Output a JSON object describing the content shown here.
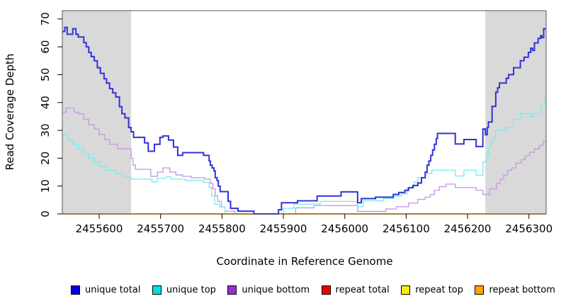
{
  "chart_data": {
    "type": "line",
    "subtype": "step-coverage",
    "title": "",
    "xlabel": "Coordinate in Reference Genome",
    "ylabel": "Read Coverage Depth",
    "xlim": [
      2455540,
      2456328
    ],
    "ylim": [
      0,
      73
    ],
    "x_ticks": [
      2455600,
      2455700,
      2455800,
      2455900,
      2456000,
      2456100,
      2456200,
      2456300
    ],
    "y_ticks": [
      0,
      10,
      20,
      30,
      40,
      50,
      60,
      70
    ],
    "grid": false,
    "legend_position": "bottom",
    "plot_box_color": "#555555",
    "shaded_regions": [
      {
        "x0": 2455540,
        "x1": 2455652,
        "color": "#d9d9d9"
      },
      {
        "x0": 2456229,
        "x1": 2456328,
        "color": "#d9d9d9"
      }
    ],
    "draw_order": [
      2,
      1,
      3,
      4,
      5,
      0
    ],
    "series": [
      {
        "name": "unique total",
        "color": "#3232d8",
        "legend_color": "#0000e0",
        "width": 2,
        "steps": [
          [
            2455540,
            65.5
          ],
          [
            2455544,
            67
          ],
          [
            2455548,
            64.5
          ],
          [
            2455557,
            66.5
          ],
          [
            2455562,
            64.5
          ],
          [
            2455566,
            63.5
          ],
          [
            2455575,
            61.5
          ],
          [
            2455579,
            60
          ],
          [
            2455583,
            58
          ],
          [
            2455587,
            56.5
          ],
          [
            2455592,
            55
          ],
          [
            2455597,
            52.5
          ],
          [
            2455602,
            50.5
          ],
          [
            2455608,
            48.5
          ],
          [
            2455612,
            47
          ],
          [
            2455617,
            45
          ],
          [
            2455622,
            43.5
          ],
          [
            2455627,
            42
          ],
          [
            2455633,
            38.5
          ],
          [
            2455637,
            36
          ],
          [
            2455642,
            34.5
          ],
          [
            2455648,
            31
          ],
          [
            2455652,
            29.5
          ],
          [
            2455656,
            27.5
          ],
          [
            2455674,
            25.5
          ],
          [
            2455680,
            22.5
          ],
          [
            2455690,
            25
          ],
          [
            2455699,
            27.5
          ],
          [
            2455704,
            28
          ],
          [
            2455713,
            26.5
          ],
          [
            2455721,
            24
          ],
          [
            2455728,
            21
          ],
          [
            2455736,
            22
          ],
          [
            2455770,
            21
          ],
          [
            2455779,
            19
          ],
          [
            2455781,
            17.5
          ],
          [
            2455784,
            16.5
          ],
          [
            2455787,
            15.5
          ],
          [
            2455789,
            13
          ],
          [
            2455792,
            12
          ],
          [
            2455794,
            10
          ],
          [
            2455797,
            8
          ],
          [
            2455810,
            4.5
          ],
          [
            2455814,
            2
          ],
          [
            2455826,
            1
          ],
          [
            2455852,
            0
          ],
          [
            2455892,
            1.5
          ],
          [
            2455897,
            4
          ],
          [
            2455923,
            4.7
          ],
          [
            2455955,
            6.4
          ],
          [
            2455994,
            7.9
          ],
          [
            2456021,
            4
          ],
          [
            2456027,
            5.5
          ],
          [
            2456050,
            6
          ],
          [
            2456079,
            7
          ],
          [
            2456088,
            7.7
          ],
          [
            2456098,
            8.5
          ],
          [
            2456104,
            9.4
          ],
          [
            2456111,
            10.2
          ],
          [
            2456119,
            11.1
          ],
          [
            2456125,
            13
          ],
          [
            2456131,
            15
          ],
          [
            2456134,
            17.5
          ],
          [
            2456137,
            19
          ],
          [
            2456140,
            21
          ],
          [
            2456143,
            23
          ],
          [
            2456146,
            25
          ],
          [
            2456149,
            27
          ],
          [
            2456151,
            28.9
          ],
          [
            2456180,
            25.1
          ],
          [
            2456194,
            26.7
          ],
          [
            2456214,
            24.2
          ],
          [
            2456225,
            30.5
          ],
          [
            2456229,
            28.4
          ],
          [
            2456232,
            31
          ],
          [
            2456234,
            33
          ],
          [
            2456240,
            38.6
          ],
          [
            2456246,
            43.7
          ],
          [
            2456249,
            45.3
          ],
          [
            2456252,
            47
          ],
          [
            2456263,
            48.7
          ],
          [
            2456267,
            50
          ],
          [
            2456275,
            52.5
          ],
          [
            2456286,
            55
          ],
          [
            2456292,
            56.3
          ],
          [
            2456299,
            58
          ],
          [
            2456303,
            59.5
          ],
          [
            2456306,
            58.7
          ],
          [
            2456309,
            61.4
          ],
          [
            2456315,
            63
          ],
          [
            2456319,
            64
          ],
          [
            2456321,
            63.3
          ],
          [
            2456324,
            66.5
          ]
        ]
      },
      {
        "name": "unique top",
        "color": "#7ceded",
        "legend_color": "#00e0e0",
        "width": 1.4,
        "steps": [
          [
            2455540,
            28.4
          ],
          [
            2455549,
            26.5
          ],
          [
            2455558,
            25
          ],
          [
            2455566,
            23.4
          ],
          [
            2455575,
            21.6
          ],
          [
            2455583,
            20
          ],
          [
            2455592,
            18.5
          ],
          [
            2455600,
            17
          ],
          [
            2455612,
            15.7
          ],
          [
            2455626,
            14.4
          ],
          [
            2455640,
            13.2
          ],
          [
            2455652,
            12.5
          ],
          [
            2455686,
            11.5
          ],
          [
            2455694,
            12.8
          ],
          [
            2455709,
            13.3
          ],
          [
            2455717,
            12.5
          ],
          [
            2455740,
            12
          ],
          [
            2455770,
            11.3
          ],
          [
            2455779,
            9.5
          ],
          [
            2455783,
            6.5
          ],
          [
            2455788,
            3.5
          ],
          [
            2455796,
            2.5
          ],
          [
            2455805,
            0
          ],
          [
            2455900,
            2
          ],
          [
            2455917,
            3.5
          ],
          [
            2455960,
            4.5
          ],
          [
            2456021,
            2.6
          ],
          [
            2456030,
            4.7
          ],
          [
            2456063,
            5.6
          ],
          [
            2456080,
            6.4
          ],
          [
            2456092,
            7.2
          ],
          [
            2456102,
            9.4
          ],
          [
            2456113,
            11.5
          ],
          [
            2456119,
            13
          ],
          [
            2456131,
            14.5
          ],
          [
            2456142,
            15.7
          ],
          [
            2456180,
            13.6
          ],
          [
            2456194,
            15.7
          ],
          [
            2456214,
            13.9
          ],
          [
            2456225,
            18.7
          ],
          [
            2456230,
            21
          ],
          [
            2456234,
            23.4
          ],
          [
            2456238,
            25.5
          ],
          [
            2456242,
            27.5
          ],
          [
            2456246,
            30
          ],
          [
            2456263,
            31
          ],
          [
            2456275,
            33.9
          ],
          [
            2456286,
            36
          ],
          [
            2456303,
            34.8
          ],
          [
            2456307,
            36
          ],
          [
            2456320,
            39.4
          ],
          [
            2456326,
            41.5
          ]
        ]
      },
      {
        "name": "unique bottom",
        "color": "#c89ce4",
        "legend_color": "#9a30d0",
        "width": 1.4,
        "steps": [
          [
            2455540,
            36.5
          ],
          [
            2455546,
            38
          ],
          [
            2455559,
            36.5
          ],
          [
            2455566,
            36
          ],
          [
            2455575,
            34
          ],
          [
            2455583,
            32
          ],
          [
            2455592,
            30.5
          ],
          [
            2455600,
            28.5
          ],
          [
            2455609,
            26.7
          ],
          [
            2455617,
            25
          ],
          [
            2455630,
            23.4
          ],
          [
            2455652,
            20
          ],
          [
            2455655,
            17.5
          ],
          [
            2455659,
            16
          ],
          [
            2455684,
            13.5
          ],
          [
            2455695,
            15
          ],
          [
            2455704,
            16.5
          ],
          [
            2455715,
            15
          ],
          [
            2455725,
            14
          ],
          [
            2455736,
            13.5
          ],
          [
            2455750,
            13
          ],
          [
            2455772,
            12.5
          ],
          [
            2455781,
            11
          ],
          [
            2455785,
            9
          ],
          [
            2455789,
            6.5
          ],
          [
            2455793,
            4.5
          ],
          [
            2455799,
            2.5
          ],
          [
            2455805,
            1
          ],
          [
            2455821,
            0
          ],
          [
            2455920,
            2.2
          ],
          [
            2455950,
            3
          ],
          [
            2456021,
            0.9
          ],
          [
            2456067,
            1.8
          ],
          [
            2456084,
            2.6
          ],
          [
            2456104,
            3.9
          ],
          [
            2456119,
            5.2
          ],
          [
            2456131,
            6
          ],
          [
            2456139,
            6.9
          ],
          [
            2456146,
            8.5
          ],
          [
            2456154,
            9.8
          ],
          [
            2456165,
            10.7
          ],
          [
            2456180,
            9.5
          ],
          [
            2456214,
            8.5
          ],
          [
            2456225,
            7
          ],
          [
            2456236,
            9
          ],
          [
            2456247,
            11
          ],
          [
            2456253,
            12.5
          ],
          [
            2456259,
            14
          ],
          [
            2456265,
            15.7
          ],
          [
            2456272,
            16.5
          ],
          [
            2456279,
            18.3
          ],
          [
            2456288,
            19.5
          ],
          [
            2456294,
            20.8
          ],
          [
            2456301,
            22.1
          ],
          [
            2456309,
            23.4
          ],
          [
            2456317,
            24.6
          ],
          [
            2456323,
            26
          ]
        ]
      },
      {
        "name": "repeat total",
        "color": "#e80000",
        "legend_color": "#e80000",
        "width": 1.4,
        "steps": [
          [
            2455540,
            0
          ]
        ]
      },
      {
        "name": "repeat top",
        "color": "#f2f200",
        "legend_color": "#f2f200",
        "width": 1.4,
        "steps": [
          [
            2455540,
            0
          ]
        ]
      },
      {
        "name": "repeat bottom",
        "color": "#ffa500",
        "legend_color": "#ffa500",
        "width": 1.8,
        "steps": [
          [
            2455540,
            0
          ]
        ]
      }
    ]
  }
}
